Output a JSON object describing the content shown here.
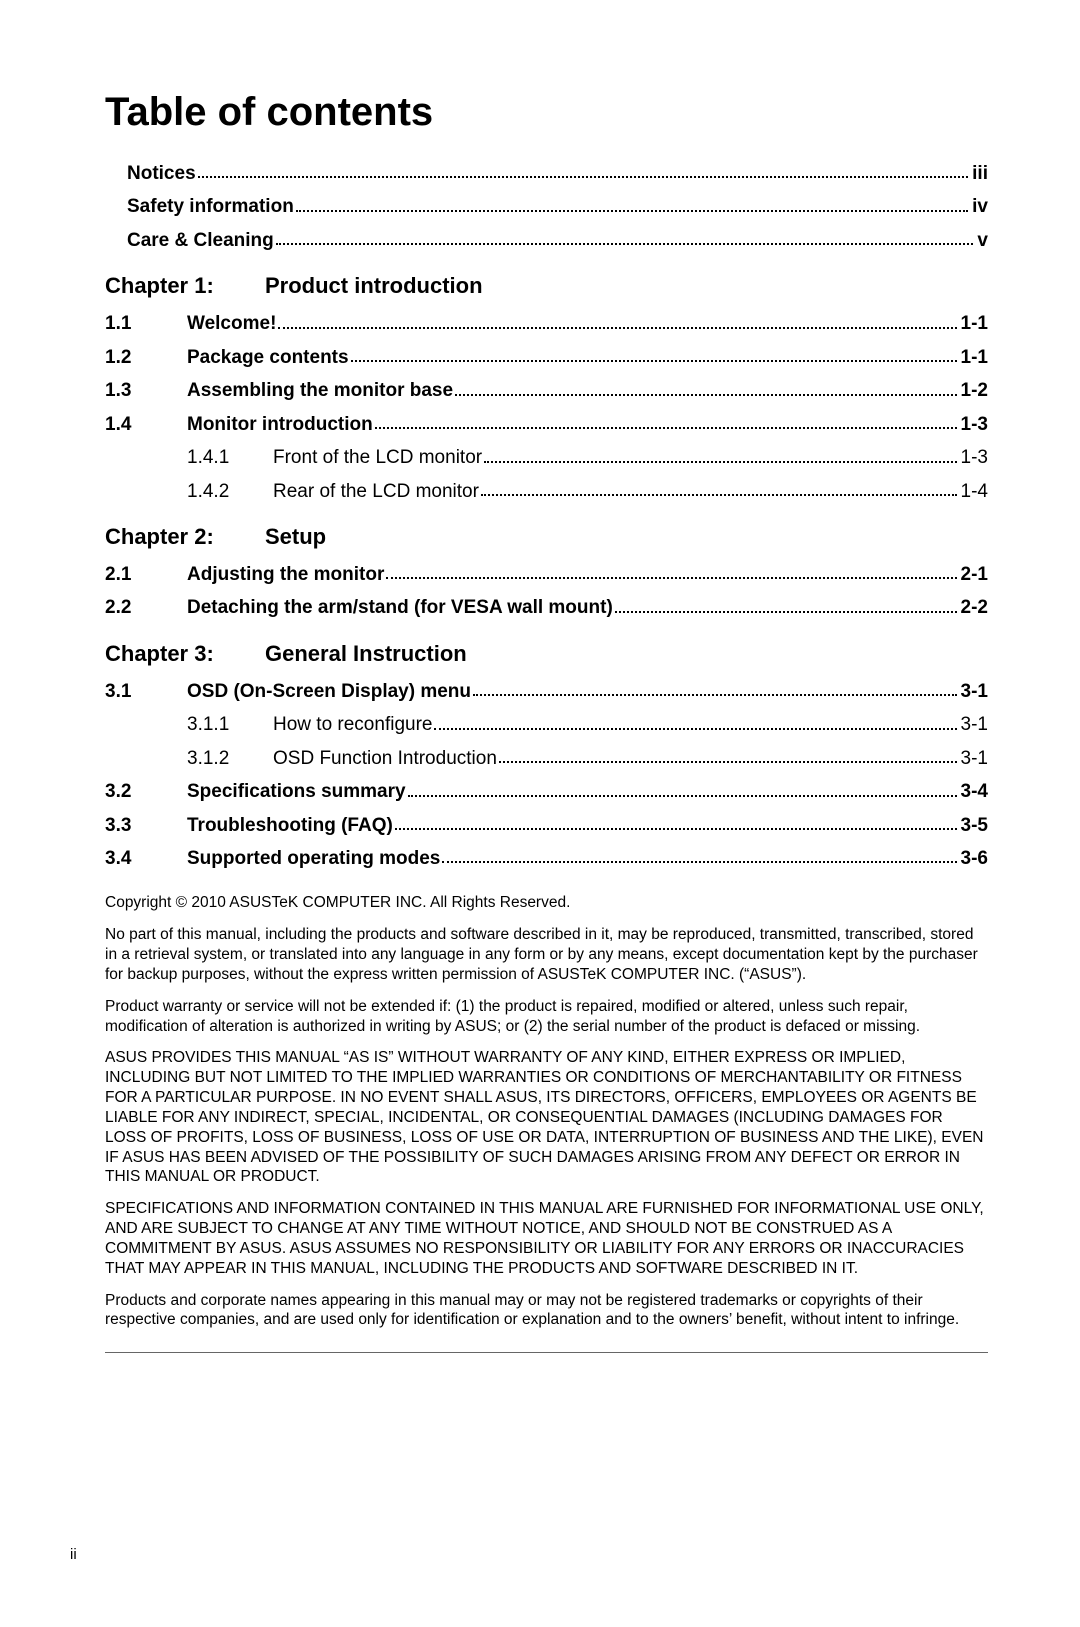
{
  "title": "Table of contents",
  "preamble": [
    {
      "label": "Notices",
      "page": "iii"
    },
    {
      "label": "Safety information",
      "page": "iv"
    },
    {
      "label": "Care & Cleaning",
      "page": "v"
    }
  ],
  "chapters": [
    {
      "heading_label": "Chapter 1:",
      "heading_title": "Product introduction",
      "sections": [
        {
          "num": "1.1",
          "label": "Welcome!",
          "page": "1-1",
          "subs": []
        },
        {
          "num": "1.2",
          "label": "Package contents",
          "page": "1-1",
          "subs": []
        },
        {
          "num": "1.3",
          "label": "Assembling the monitor base",
          "page": "1-2",
          "subs": []
        },
        {
          "num": "1.4",
          "label": "Monitor introduction",
          "page": "1-3",
          "subs": [
            {
              "num": "1.4.1",
              "label": "Front of the LCD monitor",
              "page": "1-3"
            },
            {
              "num": "1.4.2",
              "label": "Rear of the LCD monitor",
              "page": "1-4"
            }
          ]
        }
      ]
    },
    {
      "heading_label": "Chapter 2:",
      "heading_title": "Setup",
      "sections": [
        {
          "num": "2.1",
          "label": "Adjusting the monitor",
          "page": "2-1",
          "subs": []
        },
        {
          "num": "2.2",
          "label": "Detaching the arm/stand (for VESA wall mount)",
          "page": "2-2",
          "subs": []
        }
      ]
    },
    {
      "heading_label": "Chapter 3:",
      "heading_title": "General Instruction",
      "sections": [
        {
          "num": "3.1",
          "label": "OSD (On-Screen Display) menu",
          "page": "3-1",
          "subs": [
            {
              "num": "3.1.1",
              "label": "How to reconfigure",
              "page": "3-1"
            },
            {
              "num": "3.1.2",
              "label": "OSD Function Introduction",
              "page": "3-1"
            }
          ]
        },
        {
          "num": "3.2",
          "label": "Specifications summary",
          "page": "3-4",
          "subs": []
        },
        {
          "num": "3.3",
          "label": "Troubleshooting (FAQ)",
          "page": "3-5",
          "subs": []
        },
        {
          "num": "3.4",
          "label": "Supported operating modes",
          "page": "3-6",
          "subs": []
        }
      ]
    }
  ],
  "legal": [
    "Copyright © 2010 ASUSTeK COMPUTER INC. All Rights Reserved.",
    "No part of this manual, including the products and software described in it, may be reproduced, transmitted, transcribed, stored in a retrieval system, or translated into any language in any form or by any means, except documentation kept by the purchaser for backup purposes, without the express written permission of ASUSTeK COMPUTER INC. (“ASUS”).",
    "Product warranty or service will not be extended if: (1) the product is repaired, modified or altered, unless such repair, modification of alteration is authorized in writing by ASUS; or (2) the serial number of the product is defaced or missing.",
    "ASUS PROVIDES THIS MANUAL “AS IS” WITHOUT WARRANTY OF ANY KIND, EITHER EXPRESS OR IMPLIED, INCLUDING BUT NOT LIMITED TO THE IMPLIED WARRANTIES OR CONDITIONS OF MERCHANTABILITY OR FITNESS FOR A PARTICULAR PURPOSE. IN NO EVENT SHALL ASUS, ITS DIRECTORS, OFFICERS, EMPLOYEES OR AGENTS BE LIABLE FOR ANY INDIRECT, SPECIAL, INCIDENTAL, OR CONSEQUENTIAL DAMAGES (INCLUDING DAMAGES FOR LOSS OF PROFITS, LOSS OF BUSINESS, LOSS OF USE OR DATA, INTERRUPTION OF BUSINESS AND THE LIKE), EVEN IF ASUS HAS BEEN ADVISED OF THE POSSIBILITY OF SUCH DAMAGES ARISING FROM ANY DEFECT OR ERROR IN THIS MANUAL OR PRODUCT.",
    "SPECIFICATIONS AND INFORMATION CONTAINED IN THIS MANUAL ARE FURNISHED FOR INFORMATIONAL USE ONLY, AND ARE SUBJECT TO CHANGE AT ANY TIME WITHOUT NOTICE, AND SHOULD NOT BE CONSTRUED AS A COMMITMENT BY ASUS. ASUS ASSUMES NO RESPONSIBILITY OR LIABILITY FOR ANY ERRORS OR INACCURACIES THAT MAY APPEAR IN THIS MANUAL, INCLUDING THE PRODUCTS AND SOFTWARE DESCRIBED IN IT.",
    "Products and corporate names appearing in this manual may or may not be registered trademarks or copyrights of their respective companies, and are used only for identification or explanation and to the owners’ benefit, without intent to infringe."
  ],
  "footer_page": "ii"
}
